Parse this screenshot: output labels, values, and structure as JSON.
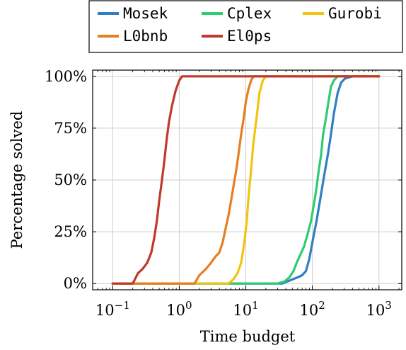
{
  "chart_data": {
    "type": "line",
    "xlabel": "Time budget",
    "ylabel": "Percentage solved",
    "x_scale": "log",
    "xlim": [
      0.05,
      2200
    ],
    "ylim": [
      -3,
      103
    ],
    "grid": true,
    "legend_position": "top, above plot",
    "x_tick_labels": [
      {
        "value": 0.1,
        "base": "10",
        "exp": "−1"
      },
      {
        "value": 1,
        "base": "10",
        "exp": "0"
      },
      {
        "value": 10,
        "base": "10",
        "exp": "1"
      },
      {
        "value": 100,
        "base": "10",
        "exp": "2"
      },
      {
        "value": 1000,
        "base": "10",
        "exp": "3"
      }
    ],
    "y_ticks": [
      {
        "value": 0,
        "label": "0%"
      },
      {
        "value": 25,
        "label": "25%"
      },
      {
        "value": 50,
        "label": "50%"
      },
      {
        "value": 75,
        "label": "75%"
      },
      {
        "value": 100,
        "label": "100%"
      }
    ],
    "series": [
      {
        "name": "Mosek",
        "color": "#2f7fc1",
        "points": [
          [
            0.1,
            0
          ],
          [
            35,
            0
          ],
          [
            42,
            1
          ],
          [
            50,
            2
          ],
          [
            60,
            3
          ],
          [
            70,
            4
          ],
          [
            80,
            6
          ],
          [
            90,
            12
          ],
          [
            100,
            20
          ],
          [
            115,
            30
          ],
          [
            130,
            40
          ],
          [
            150,
            52
          ],
          [
            170,
            62
          ],
          [
            190,
            72
          ],
          [
            210,
            82
          ],
          [
            240,
            92
          ],
          [
            270,
            97
          ],
          [
            310,
            99
          ],
          [
            400,
            100
          ],
          [
            1000,
            100
          ]
        ]
      },
      {
        "name": "Cplex",
        "color": "#2ecc71",
        "points": [
          [
            0.1,
            0
          ],
          [
            30,
            0
          ],
          [
            38,
            1
          ],
          [
            45,
            3
          ],
          [
            52,
            6
          ],
          [
            58,
            10
          ],
          [
            66,
            14
          ],
          [
            75,
            18
          ],
          [
            85,
            24
          ],
          [
            95,
            30
          ],
          [
            105,
            38
          ],
          [
            115,
            46
          ],
          [
            125,
            55
          ],
          [
            135,
            62
          ],
          [
            145,
            72
          ],
          [
            160,
            80
          ],
          [
            175,
            88
          ],
          [
            190,
            95
          ],
          [
            210,
            98
          ],
          [
            240,
            100
          ],
          [
            1000,
            100
          ]
        ]
      },
      {
        "name": "Gurobi",
        "color": "#f1c40f",
        "points": [
          [
            0.1,
            0
          ],
          [
            5.5,
            0
          ],
          [
            6.5,
            2
          ],
          [
            7.5,
            5
          ],
          [
            8.5,
            10
          ],
          [
            9.5,
            20
          ],
          [
            10.3,
            30
          ],
          [
            11,
            42
          ],
          [
            12,
            55
          ],
          [
            13,
            68
          ],
          [
            14.5,
            80
          ],
          [
            16,
            92
          ],
          [
            18,
            98
          ],
          [
            20,
            100
          ],
          [
            1000,
            100
          ]
        ]
      },
      {
        "name": "L0bnb",
        "color": "#e67e22",
        "points": [
          [
            0.1,
            0
          ],
          [
            1.7,
            0
          ],
          [
            2,
            4
          ],
          [
            2.5,
            7
          ],
          [
            3,
            10
          ],
          [
            3.5,
            13
          ],
          [
            4,
            15
          ],
          [
            4.5,
            20
          ],
          [
            5,
            27
          ],
          [
            5.5,
            33
          ],
          [
            6,
            40
          ],
          [
            6.6,
            48
          ],
          [
            7.2,
            55
          ],
          [
            7.8,
            63
          ],
          [
            8.5,
            72
          ],
          [
            9.3,
            80
          ],
          [
            10,
            88
          ],
          [
            11,
            94
          ],
          [
            12,
            98
          ],
          [
            13,
            100
          ],
          [
            1000,
            100
          ]
        ]
      },
      {
        "name": "El0ps",
        "color": "#c0392b",
        "points": [
          [
            0.1,
            0
          ],
          [
            0.2,
            0
          ],
          [
            0.24,
            5
          ],
          [
            0.28,
            7
          ],
          [
            0.33,
            10
          ],
          [
            0.38,
            15
          ],
          [
            0.42,
            22
          ],
          [
            0.46,
            30
          ],
          [
            0.5,
            40
          ],
          [
            0.55,
            50
          ],
          [
            0.6,
            60
          ],
          [
            0.65,
            70
          ],
          [
            0.7,
            78
          ],
          [
            0.78,
            86
          ],
          [
            0.88,
            93
          ],
          [
            1,
            98
          ],
          [
            1.1,
            100
          ],
          [
            1000,
            100
          ]
        ]
      }
    ]
  }
}
